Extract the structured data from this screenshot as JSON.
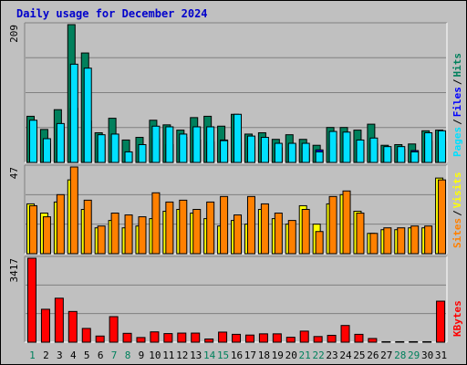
{
  "title": "Daily usage for December 2024",
  "colors": {
    "hits": "#00805c",
    "files": "#0000ff",
    "pages": "#00e0ff",
    "visits": "#ffff00",
    "sites": "#ff8000",
    "kbytes": "#ff0000",
    "weekday_label": "#000000",
    "weekend_label": "#00805c"
  },
  "chart_data": [
    {
      "type": "bar",
      "panel": "requests",
      "ymax_label": "209",
      "ylim": [
        0,
        209
      ],
      "categories": [
        "1",
        "2",
        "3",
        "4",
        "5",
        "6",
        "7",
        "8",
        "9",
        "10",
        "11",
        "12",
        "13",
        "14",
        "15",
        "16",
        "17",
        "18",
        "19",
        "20",
        "21",
        "22",
        "23",
        "24",
        "25",
        "26",
        "27",
        "28",
        "29",
        "30",
        "31"
      ],
      "series": [
        {
          "name": "Hits",
          "values": [
            70,
            50,
            80,
            209,
            166,
            45,
            67,
            34,
            38,
            64,
            57,
            49,
            68,
            70,
            55,
            73,
            43,
            45,
            35,
            42,
            35,
            26,
            53,
            53,
            49,
            58,
            26,
            27,
            28,
            48,
            49
          ]
        },
        {
          "name": "Files",
          "values": [
            57,
            28,
            51,
            82,
            63,
            34,
            42,
            13,
            22,
            36,
            27,
            38,
            34,
            31,
            34,
            30,
            23,
            27,
            22,
            27,
            21,
            19,
            28,
            25,
            28,
            28,
            20,
            20,
            18,
            32,
            31
          ]
        },
        {
          "name": "Pages",
          "values": [
            64,
            36,
            59,
            149,
            143,
            42,
            43,
            16,
            27,
            55,
            54,
            43,
            54,
            54,
            33,
            73,
            40,
            38,
            29,
            29,
            29,
            16,
            47,
            46,
            34,
            37,
            24,
            24,
            16,
            45,
            48
          ]
        }
      ],
      "legend": [
        "Pages",
        "Files",
        "Hits"
      ],
      "legend_placement": "right"
    },
    {
      "type": "bar",
      "panel": "visitors",
      "ymax_label": "47",
      "ylim": [
        0,
        47
      ],
      "categories": [
        "1",
        "2",
        "3",
        "4",
        "5",
        "6",
        "7",
        "8",
        "9",
        "10",
        "11",
        "12",
        "13",
        "14",
        "15",
        "16",
        "17",
        "18",
        "19",
        "20",
        "21",
        "22",
        "23",
        "24",
        "25",
        "26",
        "27",
        "28",
        "29",
        "30",
        "31"
      ],
      "series": [
        {
          "name": "Visits",
          "values": [
            27,
            22,
            28,
            40,
            24,
            14,
            18,
            14,
            15,
            19,
            23,
            24,
            22,
            19,
            15,
            18,
            16,
            24,
            19,
            16,
            26,
            16,
            27,
            32,
            23,
            11,
            13,
            13,
            14,
            14,
            41
          ]
        },
        {
          "name": "Sites",
          "values": [
            26,
            20,
            32,
            47,
            29,
            15,
            22,
            21,
            20,
            33,
            28,
            29,
            24,
            28,
            31,
            21,
            31,
            27,
            22,
            18,
            24,
            12,
            31,
            34,
            22,
            11,
            14,
            14,
            15,
            15,
            40
          ]
        }
      ],
      "legend": [
        "Sites",
        "Visits"
      ],
      "legend_placement": "right"
    },
    {
      "type": "bar",
      "panel": "traffic",
      "ymax_label": "3417",
      "ylim": [
        0,
        3417
      ],
      "categories": [
        "1",
        "2",
        "3",
        "4",
        "5",
        "6",
        "7",
        "8",
        "9",
        "10",
        "11",
        "12",
        "13",
        "14",
        "15",
        "16",
        "17",
        "18",
        "19",
        "20",
        "21",
        "22",
        "23",
        "24",
        "25",
        "26",
        "27",
        "28",
        "29",
        "30",
        "31"
      ],
      "series": [
        {
          "name": "KBytes",
          "values": [
            3417,
            1340,
            1790,
            1250,
            560,
            250,
            1040,
            360,
            190,
            420,
            350,
            370,
            370,
            130,
            410,
            320,
            290,
            340,
            340,
            200,
            450,
            230,
            280,
            680,
            320,
            150,
            20,
            20,
            20,
            20,
            1670
          ]
        }
      ],
      "legend": [
        "KBytes"
      ],
      "legend_placement": "right"
    }
  ]
}
